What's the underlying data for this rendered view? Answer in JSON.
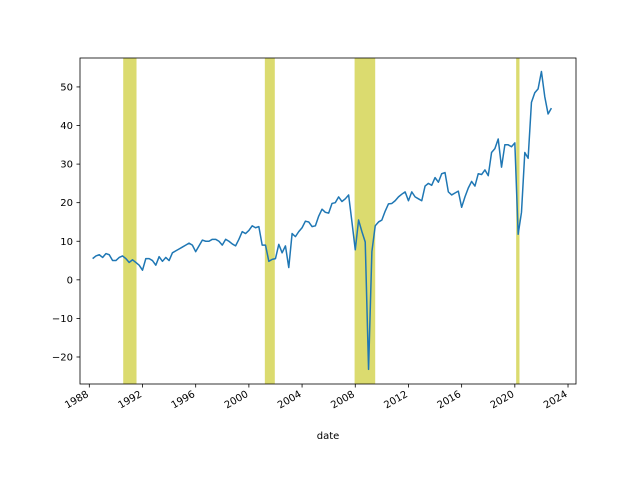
{
  "chart_data": {
    "type": "line",
    "title": "",
    "xlabel": "date",
    "ylabel": "",
    "grid": false,
    "xlim": [
      1987.3,
      2024.6
    ],
    "ylim": [
      -27,
      57.5
    ],
    "x_ticks": [
      1988,
      1992,
      1996,
      2000,
      2004,
      2008,
      2012,
      2016,
      2020,
      2024
    ],
    "y_ticks": [
      -20,
      -10,
      0,
      10,
      20,
      30,
      40,
      50
    ],
    "line_color": "#1f77b4",
    "shade_color": "#dbdb6f",
    "shaded_periods": [
      {
        "start": 1990.55,
        "end": 1991.55
      },
      {
        "start": 2001.2,
        "end": 2001.95
      },
      {
        "start": 2007.95,
        "end": 2009.5
      },
      {
        "start": 2020.1,
        "end": 2020.35
      }
    ],
    "series": [
      {
        "x": [
          1988.25,
          1988.5,
          1988.75,
          1989.0,
          1989.25,
          1989.5,
          1989.75,
          1990.0,
          1990.25,
          1990.5,
          1990.75,
          1991.0,
          1991.25,
          1991.5,
          1991.75,
          1992.0,
          1992.25,
          1992.5,
          1992.75,
          1993.0,
          1993.25,
          1993.5,
          1993.75,
          1994.0,
          1994.25,
          1994.5,
          1994.75,
          1995.0,
          1995.25,
          1995.5,
          1995.75,
          1996.0,
          1996.25,
          1996.5,
          1996.75,
          1997.0,
          1997.25,
          1997.5,
          1997.75,
          1998.0,
          1998.25,
          1998.5,
          1998.75,
          1999.0,
          1999.25,
          1999.5,
          1999.75,
          2000.0,
          2000.25,
          2000.5,
          2000.75,
          2001.0,
          2001.25,
          2001.5,
          2001.75,
          2002.0,
          2002.25,
          2002.5,
          2002.75,
          2003.0,
          2003.25,
          2003.5,
          2003.75,
          2004.0,
          2004.25,
          2004.5,
          2004.75,
          2005.0,
          2005.25,
          2005.5,
          2005.75,
          2006.0,
          2006.25,
          2006.5,
          2006.75,
          2007.0,
          2007.25,
          2007.5,
          2007.75,
          2008.0,
          2008.25,
          2008.5,
          2008.75,
          2009.0,
          2009.25,
          2009.5,
          2009.75,
          2010.0,
          2010.25,
          2010.5,
          2010.75,
          2011.0,
          2011.25,
          2011.5,
          2011.75,
          2012.0,
          2012.25,
          2012.5,
          2012.75,
          2013.0,
          2013.25,
          2013.5,
          2013.75,
          2014.0,
          2014.25,
          2014.5,
          2014.75,
          2015.0,
          2015.25,
          2015.5,
          2015.75,
          2016.0,
          2016.25,
          2016.5,
          2016.75,
          2017.0,
          2017.25,
          2017.5,
          2017.75,
          2018.0,
          2018.25,
          2018.5,
          2018.75,
          2019.0,
          2019.25,
          2019.5,
          2019.75,
          2020.0,
          2020.25,
          2020.5,
          2020.75,
          2021.0,
          2021.25,
          2021.5,
          2021.75,
          2022.0,
          2022.25,
          2022.5,
          2022.75
        ],
        "y": [
          5.5,
          6.2,
          6.5,
          5.8,
          6.8,
          6.5,
          5.0,
          5.0,
          5.8,
          6.2,
          5.5,
          4.5,
          5.2,
          4.5,
          3.8,
          2.5,
          5.5,
          5.5,
          5.0,
          3.8,
          6.0,
          4.8,
          5.8,
          5.0,
          7.0,
          7.5,
          8.0,
          8.5,
          9.0,
          9.5,
          9.0,
          7.3,
          8.8,
          10.3,
          10.0,
          10.0,
          10.5,
          10.5,
          10.0,
          9.0,
          10.5,
          10.0,
          9.3,
          8.8,
          10.5,
          12.5,
          12.0,
          12.8,
          14.0,
          13.5,
          13.8,
          9.0,
          9.0,
          4.8,
          5.3,
          5.5,
          9.2,
          7.0,
          8.8,
          3.2,
          12.0,
          11.2,
          12.5,
          13.5,
          15.2,
          15.0,
          13.8,
          14.0,
          16.5,
          18.3,
          17.5,
          17.3,
          19.8,
          20.0,
          21.5,
          20.3,
          21.0,
          22.0,
          15.0,
          7.8,
          15.5,
          12.5,
          9.8,
          -23.2,
          7.3,
          14.0,
          15.0,
          15.5,
          17.8,
          19.7,
          19.8,
          20.5,
          21.5,
          22.2,
          22.8,
          20.5,
          22.8,
          21.5,
          21.0,
          20.5,
          24.3,
          25.0,
          24.5,
          26.5,
          25.3,
          27.5,
          27.8,
          22.8,
          22.0,
          22.5,
          23.0,
          18.8,
          21.5,
          23.8,
          25.5,
          24.3,
          27.5,
          27.3,
          28.5,
          27.0,
          33.0,
          34.0,
          36.5,
          29.2,
          35.0,
          35.0,
          34.5,
          35.5,
          11.8,
          17.5,
          33.0,
          31.5,
          46.0,
          48.5,
          49.5,
          54.0,
          47.5,
          43.0,
          44.5
        ]
      }
    ]
  }
}
